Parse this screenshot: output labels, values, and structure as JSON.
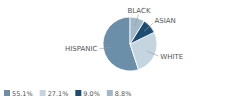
{
  "chart_data": {
    "type": "pie",
    "categories": [
      "HISPANIC",
      "WHITE",
      "ASIAN",
      "BLACK"
    ],
    "values": [
      55.1,
      27.1,
      9.0,
      8.8
    ],
    "value_labels": [
      "55.1%",
      "27.1%",
      "9.0%",
      "8.8%"
    ],
    "colors": [
      "#6b8fa8",
      "#c5d5df",
      "#1e4d72",
      "#a0b8c8"
    ],
    "legend": "lower left"
  }
}
